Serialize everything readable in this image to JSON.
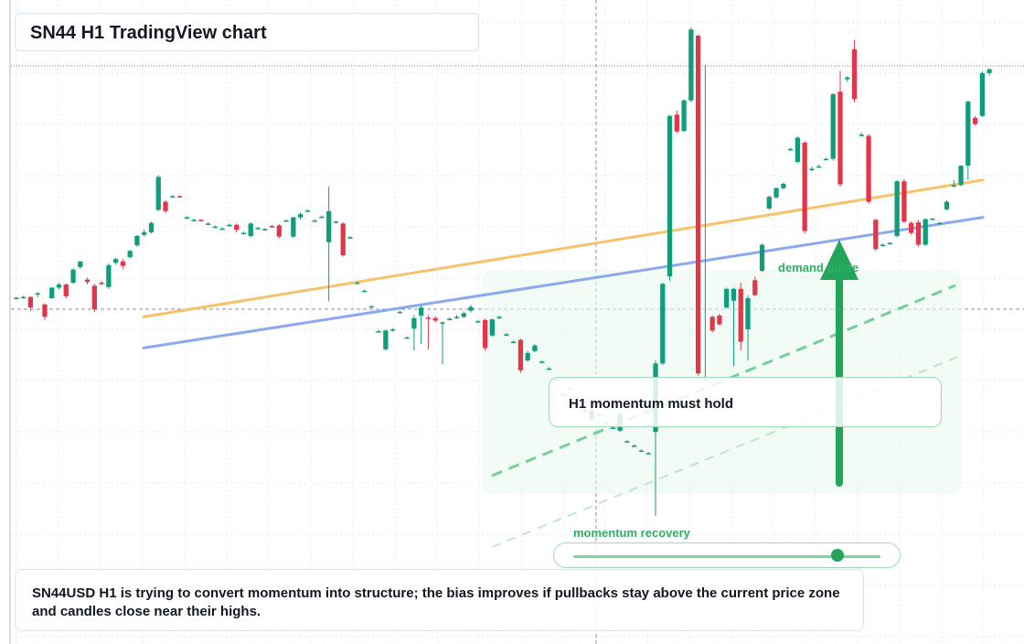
{
  "header": {
    "title": "SN44 H1 TradingView chart"
  },
  "annotations": {
    "momentum_label": "H1 momentum must hold",
    "demand_label": "demand guide",
    "slider_label": "momentum recovery",
    "slider_value": 0.86,
    "note": "SN44USD H1 is trying to convert momentum into structure; the bias improves if pullbacks stay above the current price zone and candles close near their highs."
  },
  "colors": {
    "up": "#0f9d7a",
    "down": "#e0384a",
    "grid": "#e6e9ee",
    "orange_line": "#f6c36a",
    "blue_line": "#8aa9ee",
    "green_zone": "#e9f8ee",
    "arrow": "#22a45a",
    "dashed_guide": "#4cc07f"
  },
  "chart_data": {
    "type": "candlestick",
    "symbol": "SN44USD",
    "timeframe": "H1",
    "ylim": [
      0,
      100
    ],
    "candles": [
      [
        55.0,
        55.2,
        54.8,
        55.1
      ],
      [
        55.1,
        55.4,
        54.9,
        55.2
      ],
      [
        55.2,
        55.3,
        53.0,
        53.5
      ],
      [
        55.6,
        56.0,
        55.2,
        55.8
      ],
      [
        54.0,
        54.2,
        51.5,
        52.0
      ],
      [
        55.0,
        56.8,
        54.9,
        56.7
      ],
      [
        56.7,
        57.5,
        56.4,
        57.2
      ],
      [
        57.2,
        57.4,
        55.0,
        55.3
      ],
      [
        57.5,
        59.8,
        57.3,
        59.6
      ],
      [
        60.0,
        61.0,
        59.7,
        60.9
      ],
      [
        58.0,
        58.3,
        57.2,
        57.6
      ],
      [
        57.0,
        57.3,
        52.8,
        53.2
      ],
      [
        57.5,
        57.8,
        57.1,
        57.3
      ],
      [
        56.8,
        60.6,
        56.5,
        60.3
      ],
      [
        60.7,
        61.5,
        60.4,
        61.3
      ],
      [
        60.9,
        61.3,
        59.7,
        60.2
      ],
      [
        61.6,
        62.8,
        61.4,
        62.6
      ],
      [
        63.5,
        65.2,
        63.3,
        65.0
      ],
      [
        65.2,
        66.0,
        64.9,
        65.6
      ],
      [
        65.6,
        67.3,
        65.4,
        67.1
      ],
      [
        69.2,
        74.8,
        69.0,
        74.5
      ],
      [
        70.5,
        70.8,
        68.7,
        69.0
      ],
      [
        71.4,
        71.6,
        71.2,
        71.4
      ],
      [
        71.4,
        71.5,
        71.2,
        71.3
      ],
      [
        68.0,
        68.2,
        67.8,
        68.0
      ],
      [
        67.6,
        67.8,
        67.5,
        67.6
      ],
      [
        67.6,
        67.7,
        67.4,
        67.5
      ],
      [
        67.0,
        67.2,
        66.8,
        67.0
      ],
      [
        66.5,
        66.7,
        66.3,
        66.5
      ],
      [
        66.2,
        66.4,
        66.0,
        66.2
      ],
      [
        66.8,
        67.0,
        66.5,
        66.8
      ],
      [
        66.8,
        67.0,
        65.6,
        66.0
      ],
      [
        65.5,
        65.7,
        65.3,
        65.5
      ],
      [
        65.0,
        67.2,
        64.8,
        67.0
      ],
      [
        66.3,
        66.5,
        66.1,
        66.3
      ],
      [
        66.1,
        66.3,
        65.9,
        66.1
      ],
      [
        66.6,
        66.8,
        66.3,
        66.5
      ],
      [
        66.7,
        66.9,
        64.6,
        64.9
      ],
      [
        67.5,
        67.7,
        67.3,
        67.5
      ],
      [
        64.9,
        68.1,
        64.7,
        68.0
      ],
      [
        68.0,
        68.8,
        67.6,
        68.5
      ],
      [
        69.1,
        69.3,
        68.9,
        69.1
      ],
      [
        67.5,
        67.7,
        67.3,
        67.5
      ],
      [
        68.1,
        68.3,
        68.0,
        68.1
      ],
      [
        64.0,
        73.0,
        54.5,
        69.0
      ],
      [
        67.3,
        67.5,
        67.1,
        67.3
      ],
      [
        67.0,
        67.2,
        61.7,
        61.9
      ],
      [
        64.8,
        65.0,
        64.6,
        64.8
      ],
      [
        57.5,
        57.7,
        57.3,
        57.5
      ],
      [
        56.2,
        56.4,
        56.0,
        56.2
      ],
      [
        53.7,
        53.9,
        53.5,
        53.7
      ],
      [
        49.7,
        49.9,
        49.5,
        49.7
      ],
      [
        46.8,
        50.0,
        46.6,
        49.8
      ],
      [
        49.8,
        50.2,
        49.6,
        50.0
      ],
      [
        52.8,
        53.0,
        52.6,
        52.8
      ],
      [
        48.7,
        48.9,
        48.5,
        48.7
      ],
      [
        50.1,
        52.3,
        46.6,
        51.8
      ],
      [
        52.2,
        53.8,
        47.6,
        53.5
      ],
      [
        51.9,
        52.3,
        46.8,
        51.8
      ],
      [
        51.8,
        52.1,
        51.1,
        51.4
      ],
      [
        50.9,
        51.3,
        44.4,
        51.1
      ],
      [
        51.6,
        51.9,
        51.4,
        51.7
      ],
      [
        51.8,
        52.3,
        51.7,
        52.0
      ],
      [
        52.0,
        52.9,
        51.8,
        52.6
      ],
      [
        53.0,
        53.9,
        52.7,
        53.6
      ],
      [
        51.3,
        51.5,
        51.1,
        51.3
      ],
      [
        51.5,
        51.7,
        46.6,
        47.0
      ],
      [
        49.0,
        51.7,
        48.8,
        51.6
      ],
      [
        51.8,
        52.2,
        51.6,
        52.0
      ],
      [
        49.2,
        49.4,
        49.0,
        49.2
      ],
      [
        48.0,
        48.2,
        47.8,
        48.0
      ],
      [
        48.3,
        48.5,
        43.0,
        43.4
      ],
      [
        45.0,
        46.5,
        44.8,
        46.2
      ],
      [
        46.5,
        47.6,
        46.3,
        47.4
      ],
      [
        44.8,
        45.0,
        44.6,
        44.8
      ],
      [
        43.7,
        43.9,
        43.5,
        43.7
      ],
      [
        42.0,
        42.2,
        41.8,
        42.0
      ],
      [
        39.6,
        39.8,
        39.4,
        39.6
      ],
      [
        40.5,
        40.8,
        40.3,
        40.6
      ],
      [
        38.0,
        38.2,
        37.8,
        38.0
      ],
      [
        37.0,
        37.2,
        36.8,
        37.0
      ],
      [
        35.6,
        37.5,
        35.4,
        36.9
      ],
      [
        36.3,
        36.5,
        36.1,
        36.3
      ],
      [
        35.0,
        35.2,
        34.8,
        35.0
      ],
      [
        34.2,
        34.4,
        34.0,
        34.2
      ],
      [
        33.7,
        36.7,
        33.5,
        36.4
      ],
      [
        32.0,
        32.2,
        31.8,
        32.0
      ],
      [
        31.3,
        31.5,
        31.1,
        31.3
      ],
      [
        30.5,
        30.7,
        30.3,
        30.5
      ],
      [
        30.1,
        30.3,
        29.9,
        30.1
      ],
      [
        33.5,
        45.0,
        20.0,
        44.5
      ],
      [
        44.5,
        57.5,
        44.3,
        57.3
      ],
      [
        58.5,
        84.5,
        57.8,
        84.3
      ],
      [
        84.5,
        85.2,
        81.5,
        81.8
      ],
      [
        81.9,
        87.0,
        81.7,
        86.8
      ],
      [
        86.8,
        98.5,
        86.5,
        98.2
      ],
      [
        97.2,
        97.4,
        42.5,
        42.9
      ],
      [
        41.9,
        92.5,
        41.7,
        42.1
      ],
      [
        52.0,
        52.2,
        49.5,
        49.8
      ],
      [
        52.2,
        52.5,
        50.6,
        50.8
      ],
      [
        53.5,
        56.7,
        53.3,
        56.5
      ],
      [
        54.6,
        56.7,
        44.1,
        56.5
      ],
      [
        56.5,
        57.5,
        46.6,
        48.0
      ],
      [
        50.0,
        55.5,
        45.0,
        55.0
      ],
      [
        57.9,
        58.5,
        55.3,
        55.5
      ],
      [
        59.4,
        63.8,
        59.2,
        63.6
      ],
      [
        69.4,
        71.5,
        69.2,
        71.3
      ],
      [
        71.2,
        72.8,
        71.0,
        72.7
      ],
      [
        72.7,
        73.6,
        72.5,
        73.4
      ],
      [
        78.9,
        79.2,
        78.7,
        79.0
      ],
      [
        76.9,
        81.0,
        76.7,
        80.8
      ],
      [
        80.0,
        80.3,
        65.4,
        65.8
      ],
      [
        75.6,
        76.2,
        75.4,
        75.8
      ],
      [
        76.2,
        76.5,
        76.0,
        76.2
      ],
      [
        77.4,
        77.6,
        77.2,
        77.4
      ],
      [
        77.4,
        88.0,
        77.1,
        87.8
      ],
      [
        88.2,
        91.5,
        72.9,
        73.3
      ],
      [
        90.2,
        90.7,
        89.8,
        90.5
      ],
      [
        95.0,
        96.5,
        86.5,
        87.0
      ],
      [
        81.3,
        81.6,
        81.0,
        81.3
      ],
      [
        81.1,
        81.4,
        70.2,
        70.5
      ],
      [
        67.6,
        67.8,
        62.6,
        62.9
      ],
      [
        63.6,
        63.8,
        63.3,
        63.6
      ],
      [
        63.8,
        64.0,
        63.7,
        63.9
      ],
      [
        65.0,
        74.0,
        64.8,
        73.8
      ],
      [
        73.8,
        74.2,
        67.0,
        67.3
      ],
      [
        67.1,
        67.4,
        65.2,
        65.5
      ],
      [
        67.2,
        67.6,
        63.3,
        63.6
      ],
      [
        63.6,
        67.9,
        63.4,
        67.7
      ],
      [
        67.8,
        67.9,
        67.6,
        67.8
      ],
      [
        67.1,
        67.3,
        66.9,
        67.1
      ],
      [
        69.3,
        70.8,
        69.1,
        70.5
      ],
      [
        73.0,
        74.0,
        72.8,
        73.2
      ],
      [
        73.2,
        76.4,
        73.0,
        76.3
      ],
      [
        76.3,
        86.8,
        74.0,
        86.6
      ],
      [
        84.0,
        84.3,
        82.8,
        83.0
      ],
      [
        84.3,
        91.5,
        84.1,
        91.2
      ],
      [
        91.2,
        92.0,
        90.8,
        91.8
      ]
    ],
    "overlay_lines": [
      {
        "name": "",
        "color_key": "orange_line",
        "x": [
          0.0,
          1.0
        ],
        "y": [
          52.0,
          74.0
        ]
      },
      {
        "name": "",
        "color_key": "blue_line",
        "x": [
          0.0,
          1.0
        ],
        "y": [
          47.0,
          68.0
        ]
      }
    ],
    "grid": true
  }
}
